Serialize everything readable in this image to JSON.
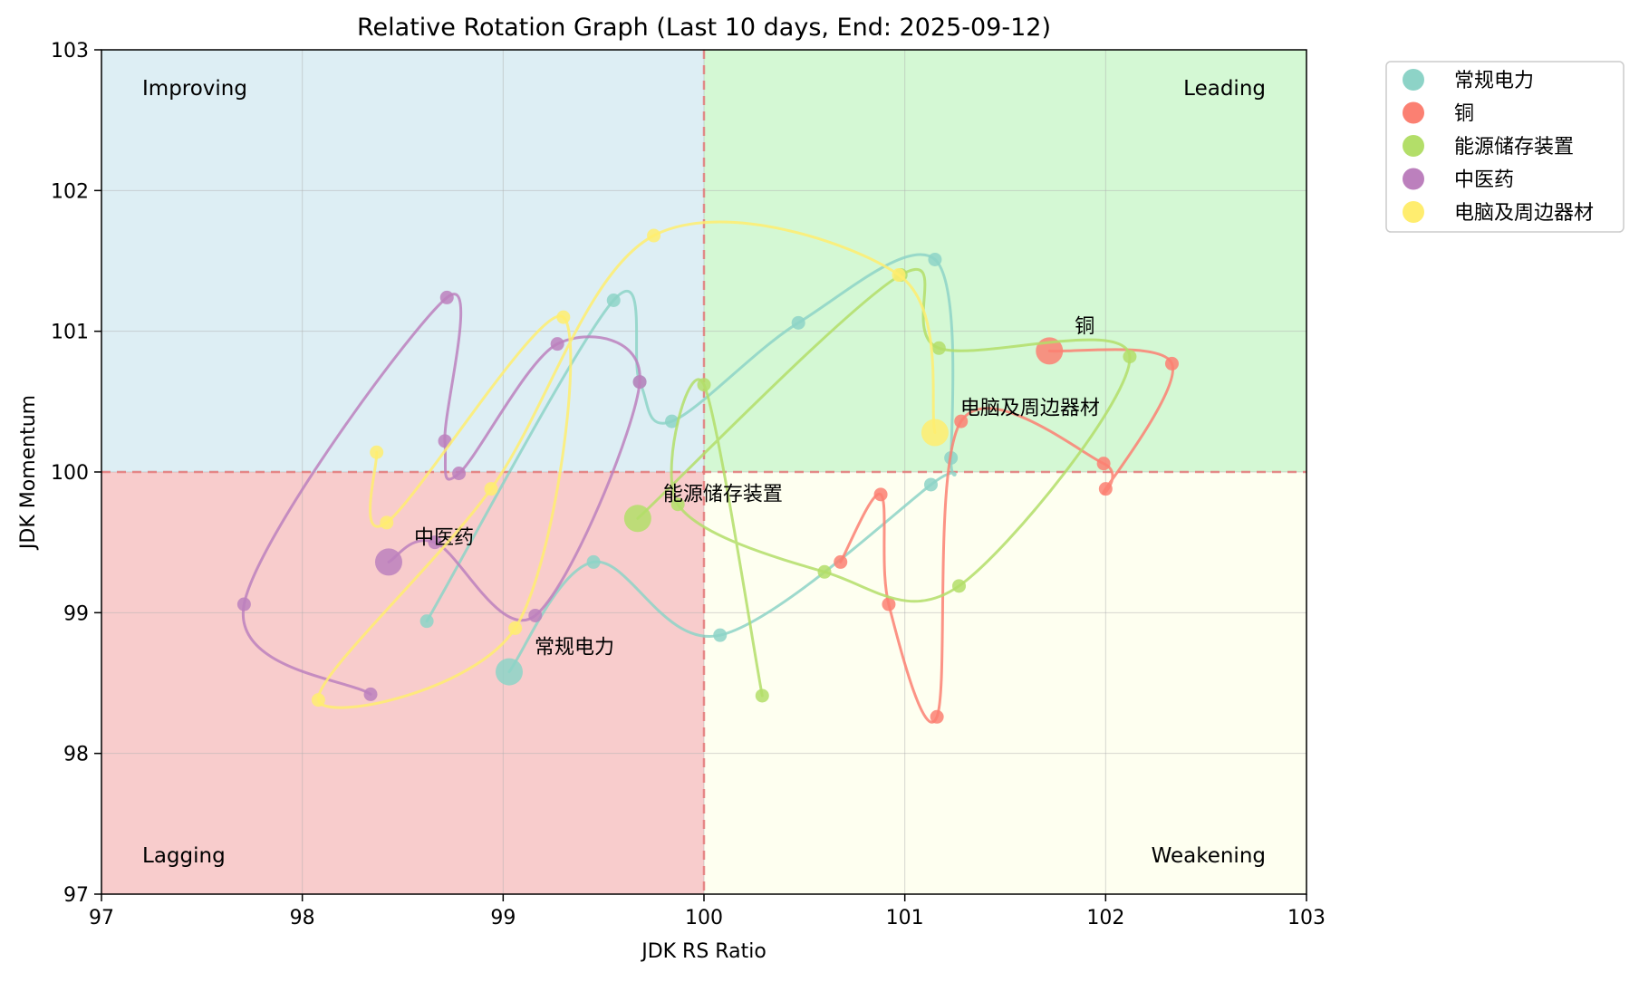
{
  "chart_data": {
    "type": "scatter",
    "title": "Relative Rotation Graph (Last 10 days, End: 2025-09-12)",
    "xlabel": "JDK RS Ratio",
    "ylabel": "JDK Momentum",
    "xlim": [
      97,
      103
    ],
    "ylim": [
      97,
      103
    ],
    "xticks": [
      "97",
      "98",
      "99",
      "100",
      "101",
      "102",
      "103"
    ],
    "yticks": [
      "97",
      "98",
      "99",
      "100",
      "101",
      "102",
      "103"
    ],
    "grid": true,
    "legend_position": "outside-top-right",
    "center": [
      100,
      100
    ],
    "quadrants": [
      {
        "name": "Improving",
        "label": "Improving",
        "position": "top-left",
        "color": "#ddeef4"
      },
      {
        "name": "Leading",
        "label": "Leading",
        "position": "top-right",
        "color": "#d4f8d4"
      },
      {
        "name": "Lagging",
        "label": "Lagging",
        "position": "bottom-left",
        "color": "#f8cccc"
      },
      {
        "name": "Weakening",
        "label": "Weakening",
        "position": "bottom-right",
        "color": "#fefff0"
      }
    ],
    "series": [
      {
        "name": "常规电力",
        "label": "常规电力",
        "color": "#8dd3c7",
        "points": [
          [
            98.62,
            98.94
          ],
          [
            99.55,
            101.22
          ],
          [
            99.68,
            100.64
          ],
          [
            99.84,
            100.36
          ],
          [
            100.47,
            101.06
          ],
          [
            101.15,
            101.51
          ],
          [
            101.23,
            100.1
          ],
          [
            101.13,
            99.91
          ],
          [
            100.08,
            98.84
          ],
          [
            99.45,
            99.36
          ],
          [
            99.03,
            98.58
          ]
        ]
      },
      {
        "name": "铜",
        "label": "铜",
        "color": "#fb8072",
        "points": [
          [
            100.68,
            99.36
          ],
          [
            100.88,
            99.84
          ],
          [
            100.92,
            99.06
          ],
          [
            101.16,
            98.26
          ],
          [
            101.28,
            100.36
          ],
          [
            101.99,
            100.06
          ],
          [
            102.0,
            99.88
          ],
          [
            102.33,
            100.77
          ],
          [
            101.72,
            100.86
          ]
        ]
      },
      {
        "name": "能源储存装置",
        "label": "能源储存装置",
        "color": "#b3de69",
        "points": [
          [
            100.29,
            98.41
          ],
          [
            100.0,
            100.62
          ],
          [
            99.87,
            99.77
          ],
          [
            100.6,
            99.29
          ],
          [
            101.27,
            99.19
          ],
          [
            102.12,
            100.82
          ],
          [
            101.17,
            100.88
          ],
          [
            100.98,
            101.4
          ],
          [
            99.67,
            99.67
          ]
        ]
      },
      {
        "name": "中医药",
        "label": "中医药",
        "color": "#bc80bd",
        "points": [
          [
            98.34,
            98.42
          ],
          [
            97.71,
            99.06
          ],
          [
            98.72,
            101.24
          ],
          [
            98.71,
            100.22
          ],
          [
            98.78,
            99.99
          ],
          [
            99.27,
            100.91
          ],
          [
            99.68,
            100.64
          ],
          [
            99.16,
            98.98
          ],
          [
            98.66,
            99.5
          ],
          [
            98.43,
            99.36
          ]
        ]
      },
      {
        "name": "电脑及周边器材",
        "label": "电脑及周边器材",
        "color": "#ffed6f",
        "points": [
          [
            98.37,
            100.14
          ],
          [
            98.42,
            99.64
          ],
          [
            99.3,
            101.1
          ],
          [
            99.06,
            98.89
          ],
          [
            98.08,
            98.38
          ],
          [
            98.94,
            99.88
          ],
          [
            99.75,
            101.68
          ],
          [
            100.97,
            101.4
          ],
          [
            101.15,
            100.28
          ]
        ]
      }
    ]
  }
}
